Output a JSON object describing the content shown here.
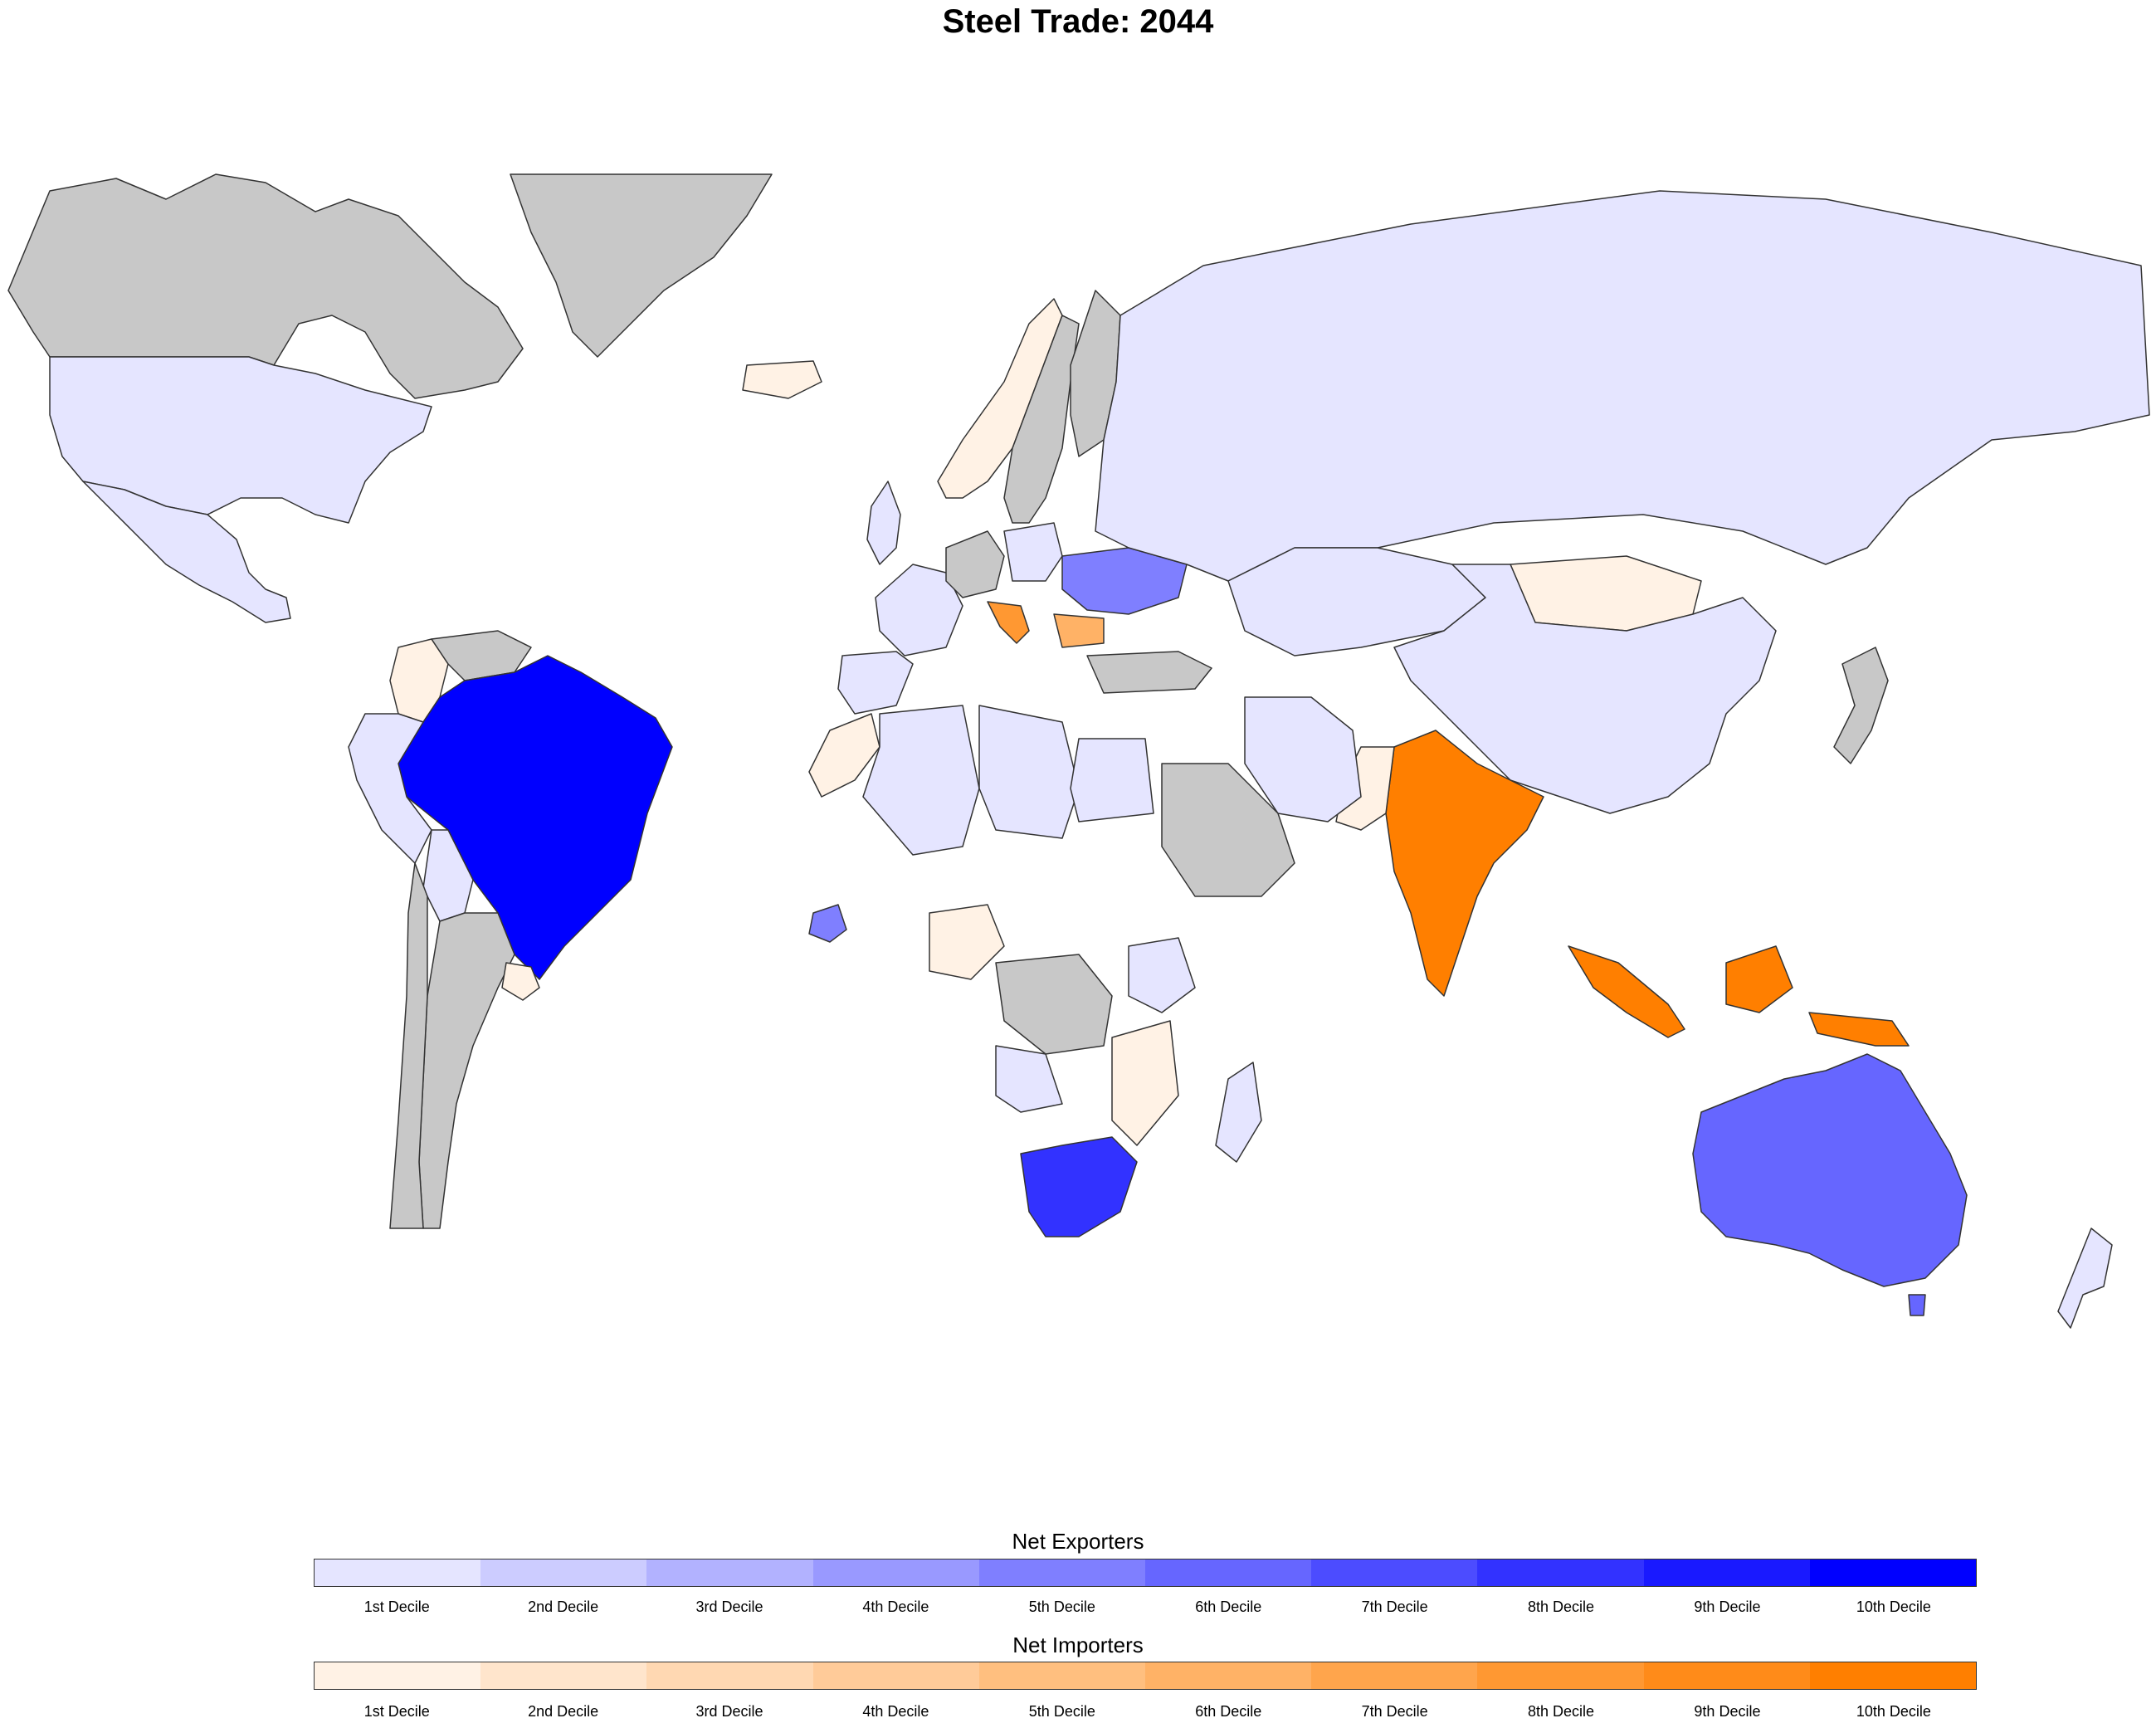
{
  "title": "Steel Trade: 2044",
  "colors": {
    "no_data": "#c8c8c8",
    "border": "#333333",
    "ocean": "#ffffff"
  },
  "legend": {
    "exporters": {
      "title": "Net Exporters",
      "colors": [
        "#e5e5ff",
        "#ccccff",
        "#b2b2ff",
        "#9999ff",
        "#7f7fff",
        "#6666ff",
        "#4c4cff",
        "#3232ff",
        "#1919ff",
        "#0000ff"
      ],
      "labels": [
        "1st Decile",
        "2nd Decile",
        "3rd Decile",
        "4th Decile",
        "5th Decile",
        "6th Decile",
        "7th Decile",
        "8th Decile",
        "9th Decile",
        "10th Decile"
      ]
    },
    "importers": {
      "title": "Net Importers",
      "colors": [
        "#fff2e5",
        "#ffe5cc",
        "#ffd8b2",
        "#ffcb99",
        "#ffbf7f",
        "#ffb266",
        "#ffa54c",
        "#ff9832",
        "#ff8b19",
        "#ff7f00"
      ],
      "labels": [
        "1st Decile",
        "2nd Decile",
        "3rd Decile",
        "4th Decile",
        "5th Decile",
        "6th Decile",
        "7th Decile",
        "8th Decile",
        "9th Decile",
        "10th Decile"
      ]
    }
  },
  "countries": [
    {
      "name": "Canada",
      "status": "no-data"
    },
    {
      "name": "Greenland",
      "status": "no-data"
    },
    {
      "name": "United States",
      "status": "exporter",
      "decile": 1
    },
    {
      "name": "Mexico",
      "status": "exporter",
      "decile": 1
    },
    {
      "name": "Colombia",
      "status": "importer",
      "decile": 1
    },
    {
      "name": "Venezuela",
      "status": "no-data"
    },
    {
      "name": "Brazil",
      "status": "exporter",
      "decile": 10
    },
    {
      "name": "Peru",
      "status": "exporter",
      "decile": 1
    },
    {
      "name": "Bolivia",
      "status": "exporter",
      "decile": 1
    },
    {
      "name": "Argentina",
      "status": "no-data"
    },
    {
      "name": "Chile",
      "status": "no-data"
    },
    {
      "name": "Uruguay",
      "status": "importer",
      "decile": 1
    },
    {
      "name": "Iceland",
      "status": "importer",
      "decile": 1
    },
    {
      "name": "Norway",
      "status": "importer",
      "decile": 1
    },
    {
      "name": "Sweden",
      "status": "no-data"
    },
    {
      "name": "Finland",
      "status": "no-data"
    },
    {
      "name": "United Kingdom",
      "status": "exporter",
      "decile": 1
    },
    {
      "name": "France",
      "status": "exporter",
      "decile": 1
    },
    {
      "name": "Spain",
      "status": "exporter",
      "decile": 1
    },
    {
      "name": "Germany",
      "status": "no-data"
    },
    {
      "name": "Poland",
      "status": "exporter",
      "decile": 1
    },
    {
      "name": "Ukraine",
      "status": "exporter",
      "decile": 5
    },
    {
      "name": "Russia",
      "status": "exporter",
      "decile": 1
    },
    {
      "name": "Bulgaria",
      "status": "importer",
      "decile": 6
    },
    {
      "name": "Croatia",
      "status": "importer",
      "decile": 8
    },
    {
      "name": "Turkey",
      "status": "no-data"
    },
    {
      "name": "Kazakhstan",
      "status": "exporter",
      "decile": 1
    },
    {
      "name": "Mongolia",
      "status": "importer",
      "decile": 1
    },
    {
      "name": "China",
      "status": "exporter",
      "decile": 1
    },
    {
      "name": "India",
      "status": "importer",
      "decile": 10
    },
    {
      "name": "Pakistan",
      "status": "importer",
      "decile": 1
    },
    {
      "name": "Iran",
      "status": "exporter",
      "decile": 1
    },
    {
      "name": "Saudi Arabia",
      "status": "no-data"
    },
    {
      "name": "Indonesia",
      "status": "importer",
      "decile": 10
    },
    {
      "name": "Australia",
      "status": "exporter",
      "decile": 6
    },
    {
      "name": "New Zealand",
      "status": "exporter",
      "decile": 1
    },
    {
      "name": "Japan",
      "status": "no-data"
    },
    {
      "name": "Morocco",
      "status": "importer",
      "decile": 1
    },
    {
      "name": "Algeria",
      "status": "exporter",
      "decile": 1
    },
    {
      "name": "Libya",
      "status": "exporter",
      "decile": 1
    },
    {
      "name": "Egypt",
      "status": "exporter",
      "decile": 1
    },
    {
      "name": "Nigeria",
      "status": "importer",
      "decile": 1
    },
    {
      "name": "Guinea",
      "status": "exporter",
      "decile": 5
    },
    {
      "name": "South Africa",
      "status": "exporter",
      "decile": 8
    },
    {
      "name": "Madagascar",
      "status": "exporter",
      "decile": 1
    },
    {
      "name": "Mozambique",
      "status": "importer",
      "decile": 1
    },
    {
      "name": "Kenya",
      "status": "exporter",
      "decile": 1
    },
    {
      "name": "Angola",
      "status": "exporter",
      "decile": 1
    },
    {
      "name": "Democratic Republic of the Congo",
      "status": "no-data"
    }
  ]
}
